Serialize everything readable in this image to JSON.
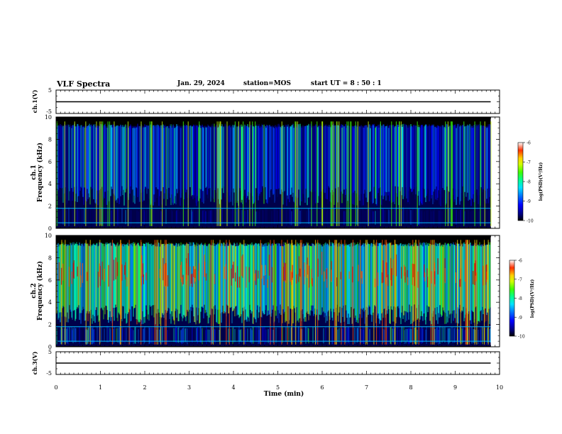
{
  "header": {
    "title": "VLF Spectra",
    "date": "Jan. 29, 2024",
    "station": "station=MOS",
    "start": "start UT =  8 : 50 : 1"
  },
  "colors": {
    "spectrogram_scale": [
      "#000000",
      "#00007a",
      "#0000ff",
      "#0060ff",
      "#00c8ff",
      "#00ffb0",
      "#3cff00",
      "#c8ff00",
      "#ffd200",
      "#ff5000",
      "#d80000"
    ],
    "trace": "#000000",
    "axis": "#000000"
  },
  "chart_data": [
    {
      "type": "line",
      "panel": "ch1-waveform",
      "ylabel": "ch.1(V)",
      "ylim": [
        -5,
        5
      ],
      "yticks": [
        "5",
        "-5"
      ],
      "series": [
        {
          "values": [
            0,
            0
          ]
        }
      ],
      "x": [
        0,
        9.8
      ]
    },
    {
      "type": "heatmap",
      "panel": "ch1-spectrogram",
      "ylabel_line1": "ch.1",
      "ylabel_line2": "Frequency (kHz)",
      "ylim": [
        0,
        10
      ],
      "yticks": [
        "0",
        "2",
        "4",
        "6",
        "8",
        "10"
      ],
      "data_time_range_min": [
        0,
        9.8
      ],
      "lines_khz": [
        0.5,
        1.8
      ],
      "colorbar": {
        "label": "log(PSD)(V²/Hz)",
        "range": [
          -10,
          -6
        ],
        "ticks": [
          "-6",
          "-7",
          "-8",
          "-9",
          "-10"
        ]
      }
    },
    {
      "type": "heatmap",
      "panel": "ch2-spectrogram",
      "ylabel_line1": "ch.2",
      "ylabel_line2": "Frequency (kHz)",
      "ylim": [
        0,
        10
      ],
      "yticks": [
        "0",
        "2",
        "4",
        "6",
        "8",
        "10"
      ],
      "data_time_range_min": [
        0,
        9.8
      ],
      "lines_khz": [
        0.5,
        1.8
      ],
      "colorbar": {
        "label": "log(PSD)(V²/Hz)",
        "range": [
          -10,
          -6
        ],
        "ticks": [
          "-6",
          "-7",
          "-8",
          "-9",
          "-10"
        ]
      }
    },
    {
      "type": "line",
      "panel": "ch3-waveform",
      "ylabel": "ch.3(V)",
      "ylim": [
        -5,
        5
      ],
      "yticks": [
        "5",
        "-5"
      ],
      "series": [
        {
          "values": [
            0,
            0
          ]
        }
      ],
      "x": [
        0,
        9.8
      ]
    }
  ],
  "xaxis": {
    "label": "Time (min)",
    "range": [
      0,
      10
    ],
    "ticks": [
      "0",
      "1",
      "2",
      "3",
      "4",
      "5",
      "6",
      "7",
      "8",
      "9",
      "10"
    ]
  }
}
